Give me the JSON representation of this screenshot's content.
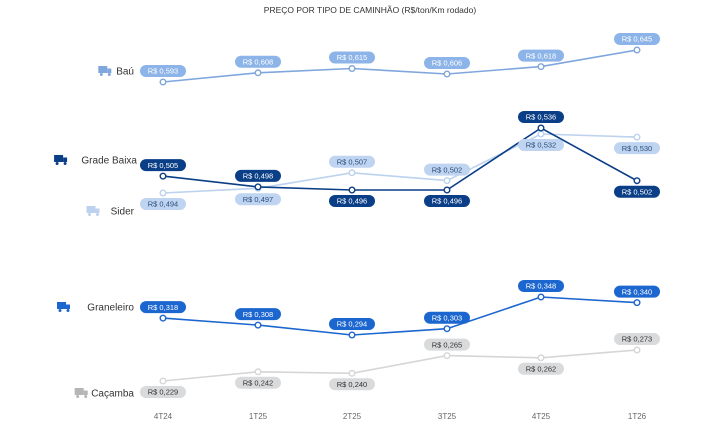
{
  "chart_data": {
    "type": "line",
    "title": "PREÇO POR TIPO DE CAMINHÃO (R$/ton/Km rodado)",
    "categories": [
      "4T24",
      "1T25",
      "2T25",
      "3T25",
      "4T25",
      "1T26"
    ],
    "grid": false,
    "series": [
      {
        "name": "Baú",
        "icon": "box-truck-icon",
        "color": "#7fa6dd",
        "label_bg": "#8db4e8",
        "label_fg": "#ffffff",
        "values": [
          0.593,
          0.608,
          0.615,
          0.606,
          0.618,
          0.645
        ],
        "labels": [
          "R$ 0,593",
          "R$ 0,608",
          "R$ 0,615",
          "R$ 0,606",
          "R$ 0,618",
          "R$ 0,645"
        ]
      },
      {
        "name": "Grade Baixa",
        "icon": "flatbed-truck-icon",
        "color": "#0a3e86",
        "label_bg": "#0a3e86",
        "label_fg": "#ffffff",
        "values": [
          0.505,
          0.498,
          0.496,
          0.496,
          0.536,
          0.502
        ],
        "labels": [
          "R$ 0,505",
          "R$ 0,498",
          "R$ 0,496",
          "R$ 0,496",
          "R$ 0,536",
          "R$ 0,502"
        ]
      },
      {
        "name": "Sider",
        "icon": "sider-truck-icon",
        "color": "#bcd2ee",
        "label_bg": "#bfd4f0",
        "label_fg": "#2c4f7c",
        "values": [
          0.494,
          0.497,
          0.507,
          0.502,
          0.532,
          0.53
        ],
        "labels": [
          "R$ 0,494",
          "R$ 0,497",
          "R$ 0,507",
          "R$ 0,502",
          "R$ 0,532",
          "R$ 0,530"
        ]
      },
      {
        "name": "Graneleiro",
        "icon": "grain-truck-icon",
        "color": "#1c66cf",
        "label_bg": "#1c66cf",
        "label_fg": "#ffffff",
        "values": [
          0.318,
          0.308,
          0.294,
          0.303,
          0.348,
          0.34
        ],
        "labels": [
          "R$ 0,318",
          "R$ 0,308",
          "R$ 0,294",
          "R$ 0,303",
          "R$ 0,348",
          "R$ 0,340"
        ]
      },
      {
        "name": "Caçamba",
        "icon": "dump-truck-icon",
        "color": "#d6d6d6",
        "label_bg": "#d9dadc",
        "label_fg": "#333333",
        "values": [
          0.229,
          0.242,
          0.24,
          0.265,
          0.262,
          0.273
        ],
        "labels": [
          "R$ 0,229",
          "R$ 0,242",
          "R$ 0,240",
          "R$ 0,265",
          "R$ 0,262",
          "R$ 0,273"
        ]
      }
    ]
  }
}
